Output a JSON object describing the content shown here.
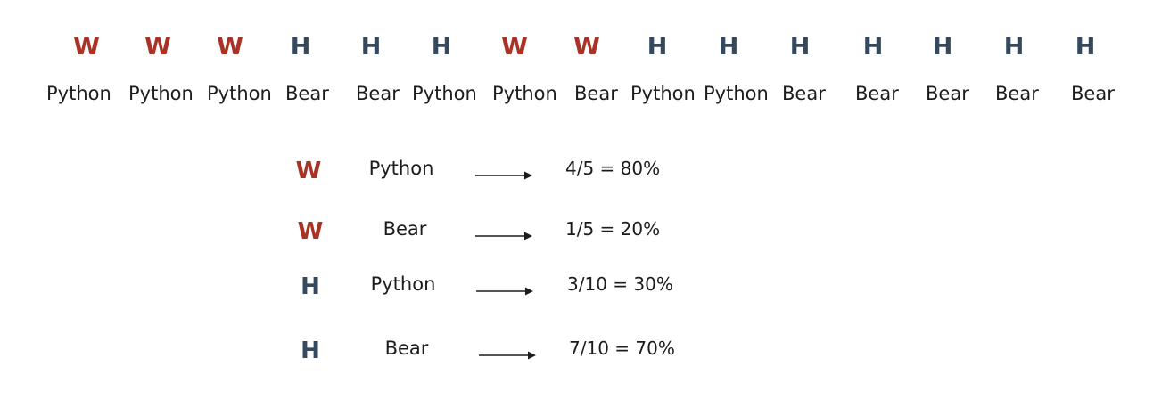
{
  "colors": {
    "W": "#a93226",
    "H": "#34495e",
    "text": "#1c1c1c"
  },
  "sequence": [
    {
      "letter": "W",
      "word": "Python"
    },
    {
      "letter": "W",
      "word": "Python"
    },
    {
      "letter": "W",
      "word": "Python"
    },
    {
      "letter": "H",
      "word": "Bear"
    },
    {
      "letter": "H",
      "word": "Bear"
    },
    {
      "letter": "H",
      "word": "Python"
    },
    {
      "letter": "W",
      "word": "Python"
    },
    {
      "letter": "W",
      "word": "Bear"
    },
    {
      "letter": "H",
      "word": "Python"
    },
    {
      "letter": "H",
      "word": "Python"
    },
    {
      "letter": "H",
      "word": "Bear"
    },
    {
      "letter": "H",
      "word": "Bear"
    },
    {
      "letter": "H",
      "word": "Bear"
    },
    {
      "letter": "H",
      "word": "Bear"
    },
    {
      "letter": "H",
      "word": "Bear"
    }
  ],
  "rows": [
    {
      "letter": "W",
      "word": "Python",
      "result": "4/5 = 80%"
    },
    {
      "letter": "W",
      "word": "Bear",
      "result": "1/5 = 20%"
    },
    {
      "letter": "H",
      "word": "Python",
      "result": "3/10 = 30%"
    },
    {
      "letter": "H",
      "word": "Bear",
      "result": "7/10 = 70%"
    }
  ]
}
